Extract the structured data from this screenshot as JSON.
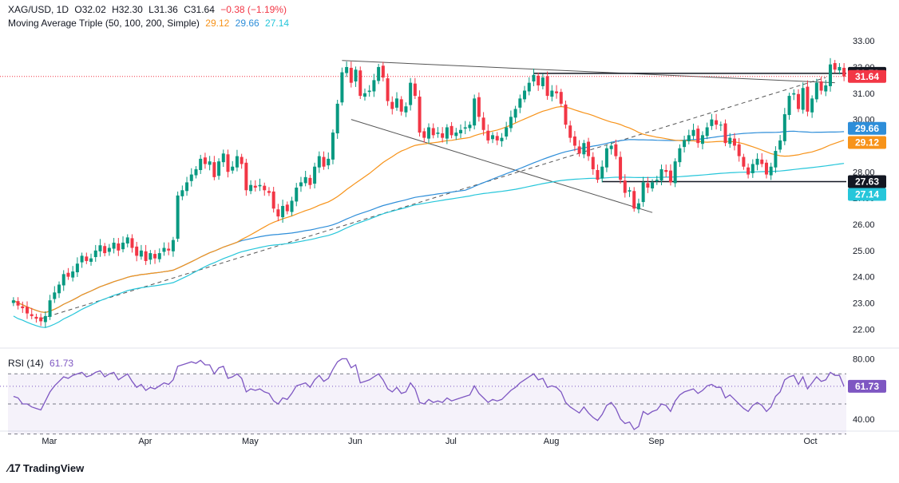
{
  "header": {
    "symbol": "XAG/USD, 1D",
    "open": "O32.02",
    "high": "H32.30",
    "low": "L31.36",
    "close": "C31.64",
    "change": "−0.38 (−1.19%)",
    "ma_title": "Moving Average Triple (50, 100, 200, Simple)",
    "ma_values": [
      "29.12",
      "29.66",
      "27.14"
    ]
  },
  "rsi_header": {
    "title": "RSI (14)",
    "value": "61.73"
  },
  "branding": {
    "logo_text": "TradingView"
  },
  "colors": {
    "up": "#089981",
    "down": "#f23645",
    "ma50": "#f7931a",
    "ma100": "#2e8ed9",
    "ma200": "#26c6da",
    "rsi": "#7e57c2",
    "hline": "#131722",
    "close_line": "#f23645"
  },
  "chart_data": [
    {
      "type": "candlestick",
      "title": "XAG/USD, 1D",
      "y_ticks": [
        "22.00",
        "23.00",
        "24.00",
        "25.00",
        "26.00",
        "27.00",
        "28.00",
        "29.00",
        "30.00",
        "31.00",
        "32.00",
        "33.00"
      ],
      "x_ticks": [
        "Mar",
        "Apr",
        "May",
        "Jun",
        "Jul",
        "Aug",
        "Sep",
        "Oct"
      ],
      "price_labels": [
        {
          "value": "31.76",
          "kind": "level"
        },
        {
          "value": "31.64",
          "kind": "close"
        },
        {
          "value": "29.66",
          "kind": "ma100"
        },
        {
          "value": "29.12",
          "kind": "ma50"
        },
        {
          "value": "27.63",
          "kind": "level"
        },
        {
          "value": "27.14",
          "kind": "ma200"
        }
      ],
      "ylim": [
        21.4,
        33.4
      ],
      "closes": [
        23.1,
        22.9,
        22.8,
        22.6,
        22.5,
        22.4,
        22.3,
        22.5,
        23.1,
        23.4,
        23.7,
        24.1,
        24.0,
        24.2,
        24.5,
        24.8,
        24.6,
        24.7,
        25.0,
        25.2,
        24.9,
        25.1,
        25.3,
        25.0,
        25.3,
        25.5,
        25.1,
        24.8,
        25.0,
        24.6,
        24.9,
        24.7,
        24.9,
        25.1,
        25.0,
        25.4,
        27.1,
        27.3,
        27.6,
        27.9,
        28.1,
        28.5,
        28.3,
        28.4,
        27.8,
        28.4,
        28.7,
        28.0,
        28.2,
        28.6,
        28.3,
        27.3,
        27.5,
        27.4,
        27.5,
        27.3,
        27.2,
        26.6,
        26.3,
        26.7,
        26.5,
        26.9,
        27.4,
        27.6,
        27.8,
        27.5,
        28.2,
        28.6,
        28.2,
        28.5,
        29.5,
        30.6,
        31.8,
        32.0,
        31.4,
        31.9,
        30.9,
        31.0,
        31.1,
        31.5,
        32.0,
        31.6,
        30.7,
        30.4,
        30.8,
        30.3,
        30.5,
        31.4,
        30.9,
        29.5,
        29.3,
        29.7,
        29.4,
        29.5,
        29.3,
        29.7,
        29.4,
        29.5,
        29.6,
        29.7,
        29.8,
        30.8,
        30.1,
        29.6,
        29.2,
        29.4,
        29.2,
        29.3,
        29.7,
        30.1,
        30.4,
        30.8,
        31.1,
        31.4,
        31.7,
        31.3,
        31.6,
        30.9,
        31.1,
        31.0,
        30.6,
        29.8,
        29.3,
        29.0,
        28.7,
        29.1,
        28.6,
        28.1,
        27.7,
        28.2,
        28.9,
        29.0,
        28.6,
        27.7,
        27.2,
        27.3,
        26.6,
        26.8,
        27.6,
        27.4,
        27.6,
        27.7,
        28.1,
        28.0,
        27.6,
        28.4,
        28.9,
        29.2,
        29.4,
        29.6,
        29.1,
        29.4,
        29.7,
        30.0,
        29.8,
        29.8,
        29.1,
        29.3,
        29.0,
        28.6,
        28.2,
        27.9,
        28.3,
        28.5,
        28.3,
        27.9,
        28.2,
        28.8,
        29.2,
        30.2,
        30.9,
        31.0,
        30.4,
        31.2,
        30.3,
        30.8,
        31.4,
        31.1,
        31.3,
        32.1,
        31.9,
        32.0,
        31.64
      ]
    },
    {
      "type": "line",
      "title": "RSI (14)",
      "ylim": [
        33,
        85
      ],
      "y_ticks": [
        "40.00",
        "80.00"
      ],
      "bands": {
        "upper": 70,
        "middle": 50,
        "lower": 30
      },
      "values": [
        55,
        54,
        50,
        50,
        48,
        47,
        46,
        52,
        58,
        62,
        65,
        68,
        67,
        69,
        70,
        71,
        68,
        69,
        71,
        72,
        68,
        70,
        71,
        66,
        68,
        70,
        65,
        61,
        63,
        59,
        61,
        60,
        62,
        64,
        63,
        66,
        75,
        76,
        77,
        78,
        77,
        79,
        76,
        76,
        70,
        74,
        75,
        67,
        68,
        70,
        67,
        58,
        60,
        59,
        60,
        58,
        57,
        52,
        50,
        54,
        53,
        57,
        62,
        63,
        64,
        61,
        66,
        69,
        65,
        67,
        73,
        78,
        80,
        80,
        74,
        76,
        64,
        65,
        66,
        68,
        70,
        66,
        60,
        58,
        61,
        57,
        58,
        64,
        60,
        51,
        50,
        53,
        51,
        52,
        51,
        54,
        52,
        53,
        54,
        55,
        56,
        62,
        57,
        54,
        51,
        53,
        52,
        53,
        56,
        59,
        61,
        64,
        66,
        68,
        70,
        66,
        67,
        61,
        62,
        61,
        58,
        51,
        48,
        46,
        44,
        48,
        44,
        41,
        39,
        43,
        49,
        51,
        47,
        40,
        37,
        38,
        33,
        35,
        45,
        43,
        45,
        46,
        50,
        49,
        45,
        52,
        56,
        58,
        59,
        60,
        57,
        59,
        62,
        63,
        61,
        61,
        54,
        56,
        53,
        50,
        47,
        45,
        49,
        51,
        49,
        45,
        48,
        55,
        58,
        66,
        68,
        69,
        63,
        68,
        60,
        64,
        68,
        65,
        66,
        71,
        69,
        69,
        61.73
      ]
    }
  ]
}
